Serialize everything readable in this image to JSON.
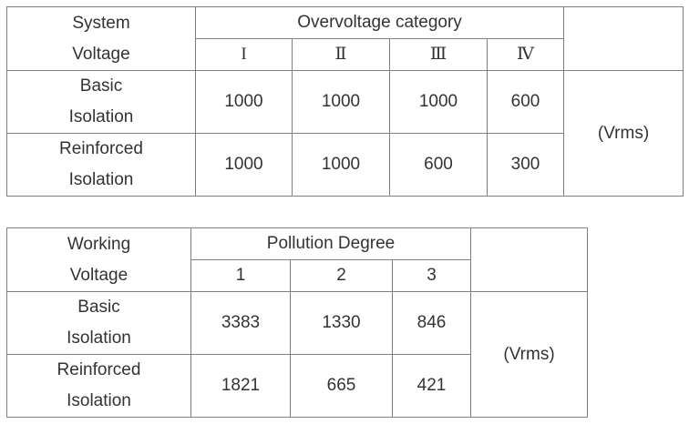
{
  "table1": {
    "header": {
      "row_label_line1": "System",
      "row_label_line2": "Voltage",
      "group_label": "Overvoltage category",
      "columns": [
        "I",
        "Ⅱ",
        "Ⅲ",
        "Ⅳ"
      ]
    },
    "rows": [
      {
        "label_line1": "Basic",
        "label_line2": "Isolation",
        "values": [
          "1000",
          "1000",
          "1000",
          "600"
        ]
      },
      {
        "label_line1": "Reinforced",
        "label_line2": "Isolation",
        "values": [
          "1000",
          "1000",
          "600",
          "300"
        ]
      }
    ],
    "unit": "(Vrms)"
  },
  "table2": {
    "header": {
      "row_label_line1": "Working",
      "row_label_line2": "Voltage",
      "group_label": "Pollution Degree",
      "columns": [
        "1",
        "2",
        "3"
      ]
    },
    "rows": [
      {
        "label_line1": "Basic",
        "label_line2": "Isolation",
        "values": [
          "3383",
          "1330",
          "846"
        ]
      },
      {
        "label_line1": "Reinforced",
        "label_line2": "Isolation",
        "values": [
          "1821",
          "665",
          "421"
        ]
      }
    ],
    "unit": "(Vrms)"
  }
}
